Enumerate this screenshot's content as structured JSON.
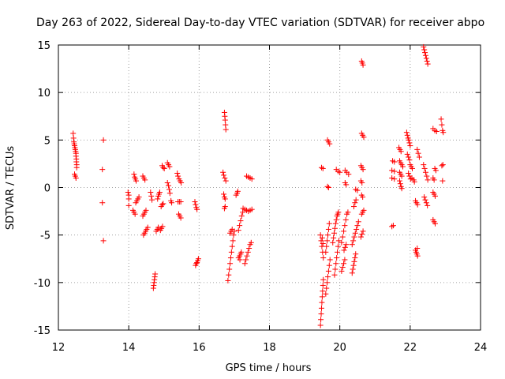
{
  "chart_data": {
    "type": "scatter",
    "title": "Day 263 of 2022, Sidereal Day-to-day VTEC variation (SDTVAR) for receiver abpo",
    "xlabel": "GPS time / hours",
    "ylabel": "SDTVAR / TECUs",
    "xlim": [
      12,
      24
    ],
    "ylim": [
      -15,
      15
    ],
    "xticks": [
      12,
      14,
      16,
      18,
      20,
      22,
      24
    ],
    "yticks": [
      -15,
      -10,
      -5,
      0,
      5,
      10,
      15
    ],
    "grid": true,
    "marker": "+",
    "color": "#ff0000",
    "points": [
      [
        12.42,
        5.7
      ],
      [
        12.43,
        5.2
      ],
      [
        12.44,
        4.8
      ],
      [
        12.45,
        4.6
      ],
      [
        12.46,
        4.4
      ],
      [
        12.47,
        4.2
      ],
      [
        12.48,
        4.0
      ],
      [
        12.49,
        3.8
      ],
      [
        12.5,
        3.6
      ],
      [
        12.5,
        3.3
      ],
      [
        12.51,
        3.0
      ],
      [
        12.51,
        2.7
      ],
      [
        12.52,
        2.4
      ],
      [
        12.52,
        2.1
      ],
      [
        12.46,
        1.4
      ],
      [
        12.48,
        1.2
      ],
      [
        12.5,
        1.0
      ],
      [
        13.28,
        5.0
      ],
      [
        13.25,
        1.9
      ],
      [
        13.25,
        -1.6
      ],
      [
        13.28,
        -5.6
      ],
      [
        13.98,
        -0.5
      ],
      [
        14.0,
        -0.8
      ],
      [
        14.0,
        -1.2
      ],
      [
        14.0,
        -1.9
      ],
      [
        14.15,
        1.4
      ],
      [
        14.17,
        1.1
      ],
      [
        14.19,
        0.9
      ],
      [
        14.21,
        0.7
      ],
      [
        14.12,
        -2.4
      ],
      [
        14.15,
        -2.6
      ],
      [
        14.18,
        -2.8
      ],
      [
        14.2,
        -1.6
      ],
      [
        14.23,
        -1.4
      ],
      [
        14.26,
        -1.2
      ],
      [
        14.29,
        -1.0
      ],
      [
        14.4,
        1.2
      ],
      [
        14.43,
        1.0
      ],
      [
        14.46,
        0.8
      ],
      [
        14.4,
        -3.0
      ],
      [
        14.43,
        -2.8
      ],
      [
        14.46,
        -2.6
      ],
      [
        14.49,
        -2.4
      ],
      [
        14.42,
        -5.0
      ],
      [
        14.45,
        -4.8
      ],
      [
        14.48,
        -4.6
      ],
      [
        14.51,
        -4.4
      ],
      [
        14.54,
        -4.2
      ],
      [
        14.62,
        -0.5
      ],
      [
        14.64,
        -0.9
      ],
      [
        14.66,
        -1.3
      ],
      [
        14.7,
        -10.6
      ],
      [
        14.71,
        -10.3
      ],
      [
        14.72,
        -10.0
      ],
      [
        14.73,
        -9.7
      ],
      [
        14.74,
        -9.4
      ],
      [
        14.75,
        -9.1
      ],
      [
        14.78,
        -4.6
      ],
      [
        14.81,
        -4.4
      ],
      [
        14.84,
        -4.2
      ],
      [
        14.82,
        -1.2
      ],
      [
        14.84,
        -0.9
      ],
      [
        14.86,
        -0.7
      ],
      [
        14.88,
        -0.5
      ],
      [
        14.95,
        2.3
      ],
      [
        14.98,
        2.1
      ],
      [
        15.01,
        2.0
      ],
      [
        14.92,
        -2.0
      ],
      [
        14.95,
        -1.8
      ],
      [
        14.98,
        -1.7
      ],
      [
        14.9,
        -4.5
      ],
      [
        14.93,
        -4.3
      ],
      [
        14.96,
        -4.1
      ],
      [
        15.1,
        2.6
      ],
      [
        15.13,
        2.4
      ],
      [
        15.16,
        2.2
      ],
      [
        15.1,
        0.5
      ],
      [
        15.13,
        0.2
      ],
      [
        15.15,
        -0.2
      ],
      [
        15.17,
        -0.6
      ],
      [
        15.2,
        -1.4
      ],
      [
        15.22,
        -1.6
      ],
      [
        15.38,
        1.5
      ],
      [
        15.4,
        1.2
      ],
      [
        15.43,
        0.9
      ],
      [
        15.46,
        0.7
      ],
      [
        15.49,
        0.5
      ],
      [
        15.4,
        -1.5
      ],
      [
        15.44,
        -1.5
      ],
      [
        15.48,
        -1.5
      ],
      [
        15.42,
        -2.8
      ],
      [
        15.45,
        -3.0
      ],
      [
        15.48,
        -3.2
      ],
      [
        15.88,
        -1.5
      ],
      [
        15.9,
        -1.8
      ],
      [
        15.92,
        -2.1
      ],
      [
        15.94,
        -2.3
      ],
      [
        15.9,
        -8.2
      ],
      [
        15.92,
        -8.0
      ],
      [
        15.94,
        -7.9
      ],
      [
        15.96,
        -7.7
      ],
      [
        15.98,
        -7.5
      ],
      [
        16.72,
        7.9
      ],
      [
        16.73,
        7.5
      ],
      [
        16.74,
        7.1
      ],
      [
        16.75,
        6.6
      ],
      [
        16.76,
        6.1
      ],
      [
        16.68,
        1.6
      ],
      [
        16.7,
        1.3
      ],
      [
        16.73,
        1.0
      ],
      [
        16.76,
        0.7
      ],
      [
        16.7,
        -0.7
      ],
      [
        16.72,
        -1.0
      ],
      [
        16.74,
        -1.2
      ],
      [
        16.72,
        -2.2
      ],
      [
        16.74,
        -2.0
      ],
      [
        16.82,
        -9.8
      ],
      [
        16.84,
        -9.2
      ],
      [
        16.86,
        -8.6
      ],
      [
        16.88,
        -8.0
      ],
      [
        16.9,
        -7.4
      ],
      [
        16.92,
        -6.8
      ],
      [
        16.94,
        -6.2
      ],
      [
        16.96,
        -5.6
      ],
      [
        16.98,
        -5.0
      ],
      [
        17.0,
        -4.6
      ],
      [
        16.88,
        -4.8
      ],
      [
        16.91,
        -4.6
      ],
      [
        16.94,
        -4.4
      ],
      [
        17.05,
        -0.8
      ],
      [
        17.08,
        -0.6
      ],
      [
        17.1,
        -0.4
      ],
      [
        17.12,
        -7.4
      ],
      [
        17.15,
        -7.2
      ],
      [
        17.18,
        -7.0
      ],
      [
        17.2,
        -6.8
      ],
      [
        17.16,
        -7.6
      ],
      [
        17.12,
        -4.5
      ],
      [
        17.15,
        -4.0
      ],
      [
        17.18,
        -3.5
      ],
      [
        17.21,
        -3.0
      ],
      [
        17.24,
        -2.6
      ],
      [
        17.25,
        -2.2
      ],
      [
        17.3,
        -2.3
      ],
      [
        17.35,
        -2.4
      ],
      [
        17.4,
        -2.5
      ],
      [
        17.45,
        -2.4
      ],
      [
        17.5,
        -2.3
      ],
      [
        17.3,
        -8.0
      ],
      [
        17.33,
        -7.6
      ],
      [
        17.36,
        -7.2
      ],
      [
        17.39,
        -6.8
      ],
      [
        17.42,
        -6.4
      ],
      [
        17.45,
        -6.0
      ],
      [
        17.48,
        -5.8
      ],
      [
        17.35,
        1.2
      ],
      [
        17.4,
        1.1
      ],
      [
        17.45,
        1.0
      ],
      [
        17.5,
        0.9
      ],
      [
        19.45,
        -14.5
      ],
      [
        19.46,
        -13.9
      ],
      [
        19.47,
        -13.3
      ],
      [
        19.48,
        -12.7
      ],
      [
        19.49,
        -12.1
      ],
      [
        19.5,
        -11.5
      ],
      [
        19.51,
        -10.9
      ],
      [
        19.52,
        -10.3
      ],
      [
        19.53,
        -9.7
      ],
      [
        19.45,
        -5.0
      ],
      [
        19.47,
        -5.6
      ],
      [
        19.49,
        -6.2
      ],
      [
        19.51,
        -6.8
      ],
      [
        19.53,
        -7.4
      ],
      [
        19.5,
        -5.3
      ],
      [
        19.52,
        -5.9
      ],
      [
        19.48,
        2.1
      ],
      [
        19.52,
        2.0
      ],
      [
        19.6,
        -11.2
      ],
      [
        19.62,
        -10.6
      ],
      [
        19.64,
        -10.0
      ],
      [
        19.66,
        -9.4
      ],
      [
        19.68,
        -8.8
      ],
      [
        19.7,
        -8.2
      ],
      [
        19.72,
        -7.6
      ],
      [
        19.6,
        -6.8
      ],
      [
        19.62,
        -6.2
      ],
      [
        19.64,
        -5.6
      ],
      [
        19.66,
        -5.0
      ],
      [
        19.68,
        -4.4
      ],
      [
        19.7,
        -3.8
      ],
      [
        19.65,
        5.0
      ],
      [
        19.68,
        4.8
      ],
      [
        19.71,
        4.6
      ],
      [
        19.65,
        0.1
      ],
      [
        19.68,
        0.0
      ],
      [
        19.8,
        -5.8
      ],
      [
        19.82,
        -5.3
      ],
      [
        19.84,
        -4.8
      ],
      [
        19.86,
        -4.3
      ],
      [
        19.88,
        -3.8
      ],
      [
        19.9,
        -3.4
      ],
      [
        19.92,
        -3.0
      ],
      [
        19.94,
        -2.8
      ],
      [
        19.96,
        -2.6
      ],
      [
        19.85,
        -9.2
      ],
      [
        19.87,
        -8.6
      ],
      [
        19.89,
        -8.0
      ],
      [
        19.91,
        -7.4
      ],
      [
        19.93,
        -6.8
      ],
      [
        19.95,
        -6.2
      ],
      [
        19.97,
        -5.6
      ],
      [
        19.9,
        1.9
      ],
      [
        19.95,
        1.7
      ],
      [
        20.0,
        1.6
      ],
      [
        20.05,
        -5.8
      ],
      [
        20.08,
        -5.2
      ],
      [
        20.11,
        -4.6
      ],
      [
        20.14,
        -4.0
      ],
      [
        20.17,
        -3.4
      ],
      [
        20.2,
        -2.8
      ],
      [
        20.23,
        -2.6
      ],
      [
        20.05,
        -8.8
      ],
      [
        20.08,
        -8.4
      ],
      [
        20.11,
        -8.0
      ],
      [
        20.14,
        -7.6
      ],
      [
        20.15,
        1.8
      ],
      [
        20.2,
        1.6
      ],
      [
        20.25,
        1.4
      ],
      [
        20.15,
        0.5
      ],
      [
        20.18,
        0.3
      ],
      [
        20.12,
        -6.6
      ],
      [
        20.15,
        -6.3
      ],
      [
        20.18,
        -6.0
      ],
      [
        20.35,
        -9.0
      ],
      [
        20.37,
        -8.6
      ],
      [
        20.39,
        -8.2
      ],
      [
        20.41,
        -7.8
      ],
      [
        20.43,
        -7.4
      ],
      [
        20.45,
        -7.0
      ],
      [
        20.35,
        -6.0
      ],
      [
        20.38,
        -5.6
      ],
      [
        20.41,
        -5.2
      ],
      [
        20.44,
        -4.8
      ],
      [
        20.47,
        -4.4
      ],
      [
        20.5,
        -4.0
      ],
      [
        20.53,
        -3.6
      ],
      [
        20.4,
        -2.0
      ],
      [
        20.43,
        -1.6
      ],
      [
        20.46,
        -1.3
      ],
      [
        20.45,
        -0.2
      ],
      [
        20.5,
        -0.3
      ],
      [
        20.62,
        13.3
      ],
      [
        20.64,
        13.1
      ],
      [
        20.66,
        12.9
      ],
      [
        20.62,
        5.7
      ],
      [
        20.65,
        5.5
      ],
      [
        20.68,
        5.3
      ],
      [
        20.6,
        2.3
      ],
      [
        20.63,
        2.1
      ],
      [
        20.66,
        1.9
      ],
      [
        20.6,
        0.7
      ],
      [
        20.63,
        0.5
      ],
      [
        20.62,
        -0.8
      ],
      [
        20.65,
        -1.0
      ],
      [
        20.62,
        -2.8
      ],
      [
        20.65,
        -2.6
      ],
      [
        20.68,
        -2.4
      ],
      [
        20.6,
        -5.2
      ],
      [
        20.63,
        -4.9
      ],
      [
        20.66,
        -4.6
      ],
      [
        21.5,
        2.8
      ],
      [
        21.55,
        2.7
      ],
      [
        21.48,
        1.8
      ],
      [
        21.55,
        1.7
      ],
      [
        21.48,
        1.0
      ],
      [
        21.55,
        0.9
      ],
      [
        21.48,
        -4.1
      ],
      [
        21.52,
        -4.0
      ],
      [
        21.7,
        2.8
      ],
      [
        21.73,
        2.6
      ],
      [
        21.76,
        2.4
      ],
      [
        21.79,
        2.2
      ],
      [
        21.68,
        4.2
      ],
      [
        21.71,
        4.0
      ],
      [
        21.74,
        3.8
      ],
      [
        21.7,
        1.6
      ],
      [
        21.73,
        1.4
      ],
      [
        21.76,
        1.2
      ],
      [
        21.7,
        0.7
      ],
      [
        21.72,
        0.4
      ],
      [
        21.74,
        0.1
      ],
      [
        21.76,
        -0.1
      ],
      [
        21.9,
        5.8
      ],
      [
        21.92,
        5.5
      ],
      [
        21.94,
        5.2
      ],
      [
        21.96,
        5.0
      ],
      [
        21.98,
        4.7
      ],
      [
        22.0,
        4.4
      ],
      [
        21.92,
        3.5
      ],
      [
        21.95,
        3.2
      ],
      [
        21.98,
        2.9
      ],
      [
        22.0,
        2.4
      ],
      [
        22.03,
        2.2
      ],
      [
        22.06,
        2.0
      ],
      [
        21.95,
        1.5
      ],
      [
        21.98,
        1.2
      ],
      [
        22.01,
        0.9
      ],
      [
        22.05,
        1.0
      ],
      [
        22.1,
        0.8
      ],
      [
        22.12,
        0.6
      ],
      [
        22.15,
        -6.6
      ],
      [
        22.17,
        -6.8
      ],
      [
        22.19,
        -7.0
      ],
      [
        22.21,
        -7.2
      ],
      [
        22.2,
        -6.4
      ],
      [
        22.15,
        -1.4
      ],
      [
        22.18,
        -1.6
      ],
      [
        22.21,
        -1.8
      ],
      [
        22.2,
        4.0
      ],
      [
        22.23,
        3.6
      ],
      [
        22.26,
        3.2
      ],
      [
        22.38,
        14.8
      ],
      [
        22.4,
        14.5
      ],
      [
        22.42,
        14.2
      ],
      [
        22.44,
        13.9
      ],
      [
        22.46,
        13.6
      ],
      [
        22.48,
        13.3
      ],
      [
        22.5,
        13.0
      ],
      [
        22.38,
        2.4
      ],
      [
        22.41,
        2.0
      ],
      [
        22.44,
        1.6
      ],
      [
        22.47,
        1.2
      ],
      [
        22.5,
        0.8
      ],
      [
        22.4,
        -1.0
      ],
      [
        22.43,
        -1.3
      ],
      [
        22.46,
        -1.6
      ],
      [
        22.49,
        -1.9
      ],
      [
        22.65,
        6.2
      ],
      [
        22.7,
        6.0
      ],
      [
        22.75,
        5.9
      ],
      [
        22.65,
        1.0
      ],
      [
        22.68,
        0.8
      ],
      [
        22.65,
        -0.5
      ],
      [
        22.68,
        -0.7
      ],
      [
        22.71,
        -0.9
      ],
      [
        22.65,
        -3.4
      ],
      [
        22.68,
        -3.6
      ],
      [
        22.71,
        -3.8
      ],
      [
        22.7,
        2.0
      ],
      [
        22.73,
        1.8
      ],
      [
        22.88,
        7.2
      ],
      [
        22.9,
        6.6
      ],
      [
        22.92,
        6.0
      ],
      [
        22.94,
        5.8
      ],
      [
        22.9,
        2.3
      ],
      [
        22.93,
        2.4
      ],
      [
        22.92,
        0.7
      ]
    ]
  }
}
